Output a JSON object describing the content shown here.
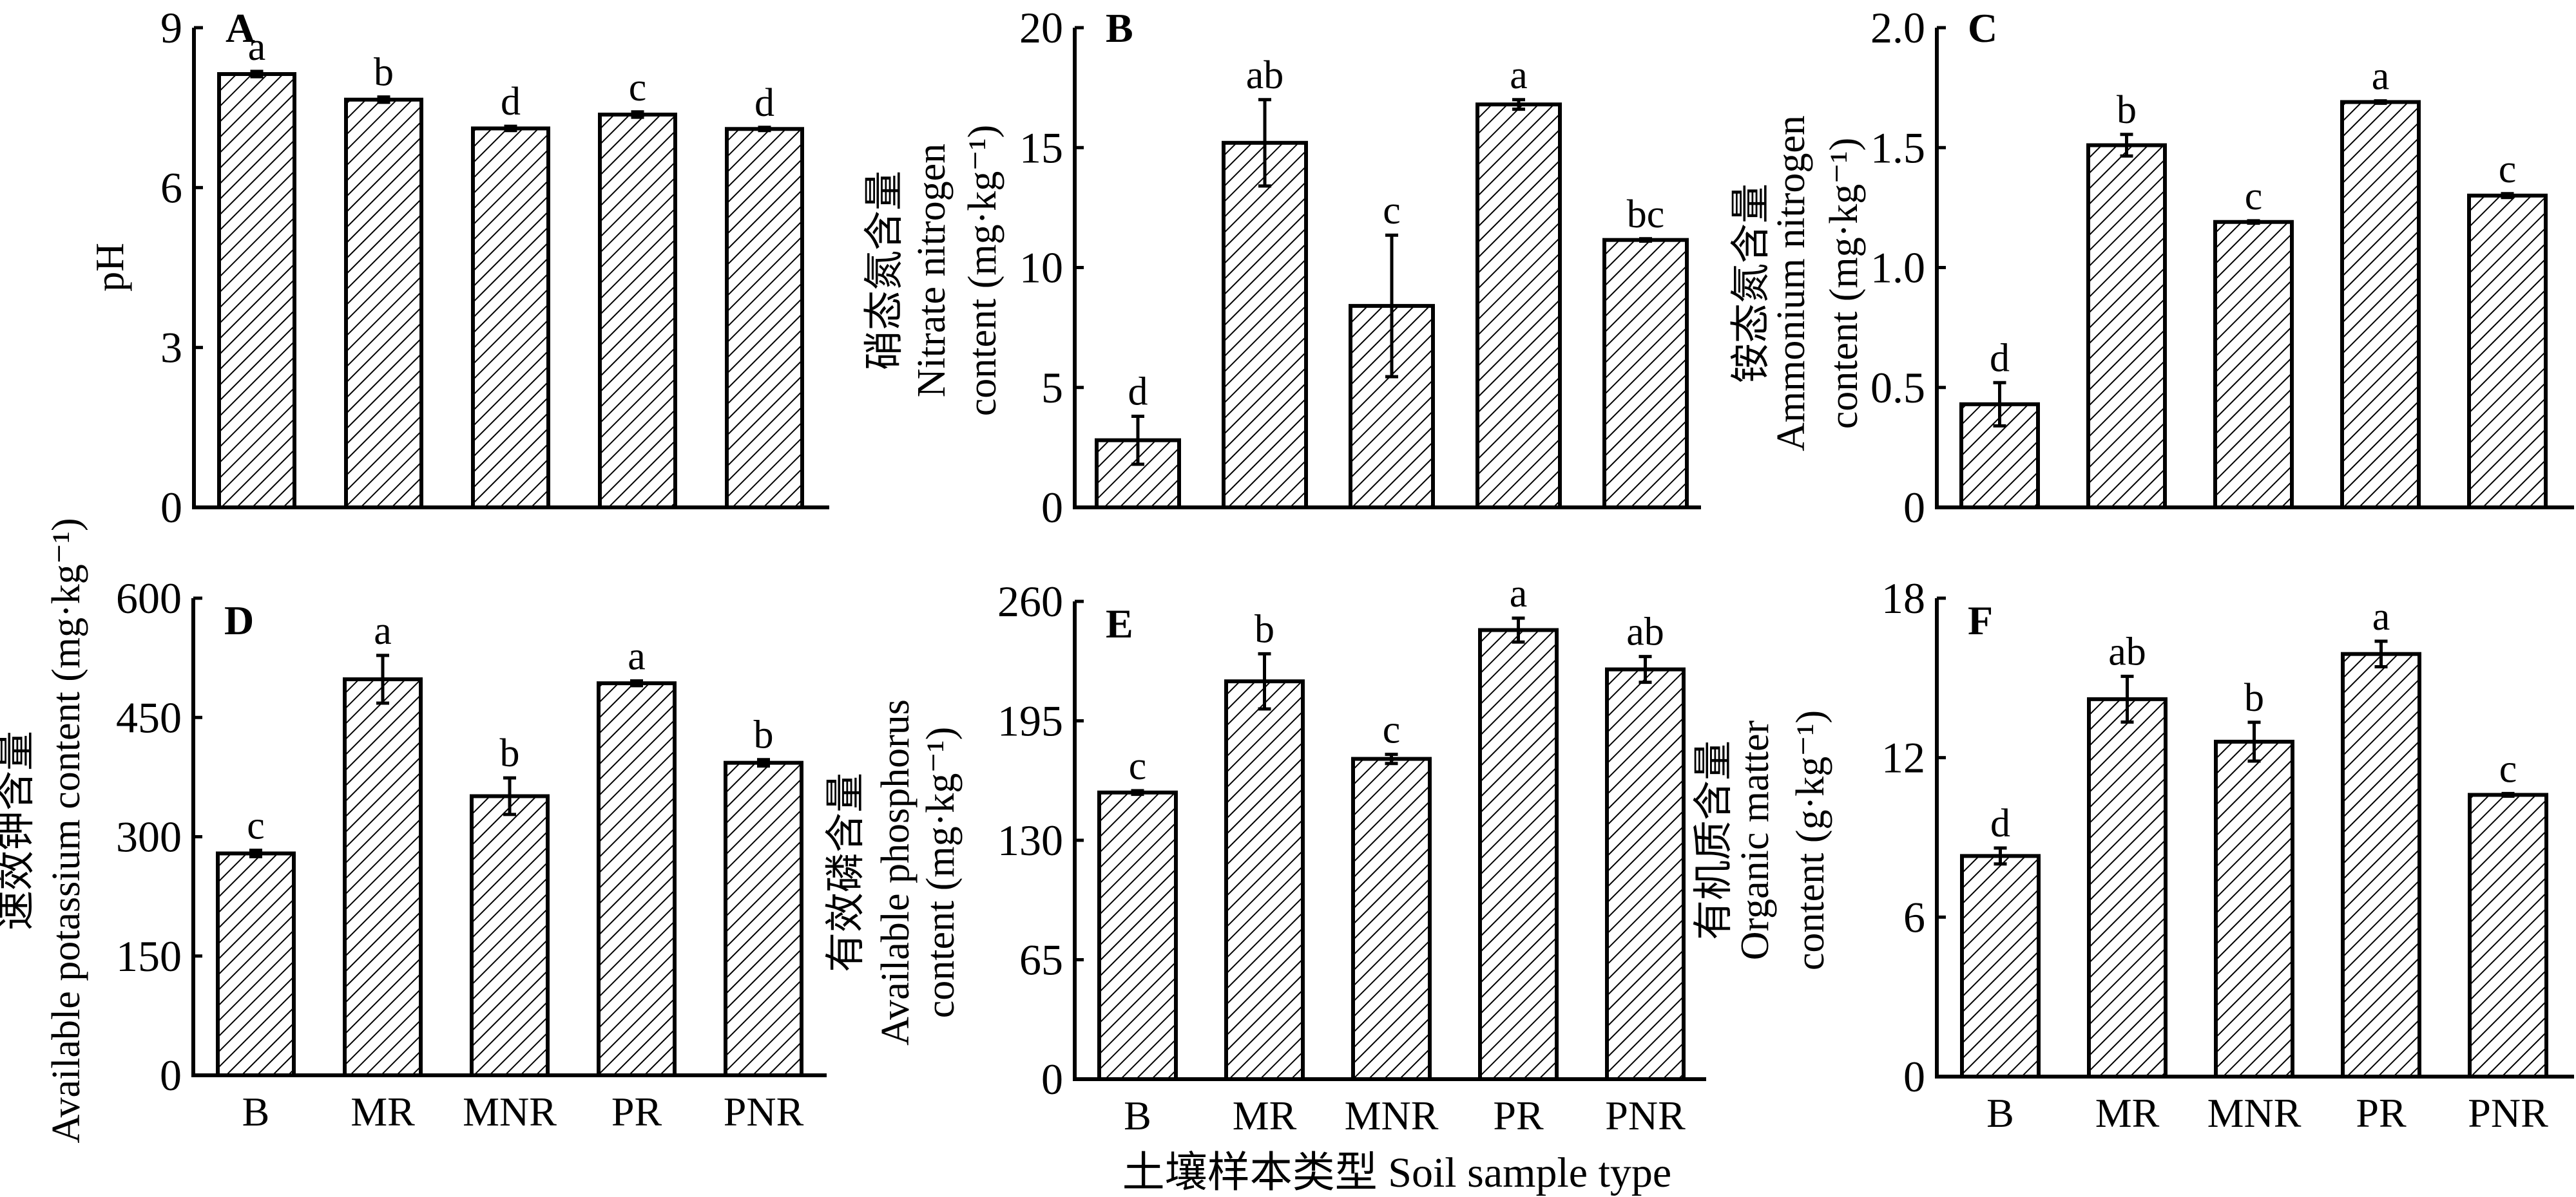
{
  "chart_data": [
    {
      "type": "bar",
      "panel": "A",
      "categories": [
        "B",
        "MR",
        "MNR",
        "PR",
        "PNR"
      ],
      "values": [
        8.13,
        7.65,
        7.11,
        7.37,
        7.1
      ],
      "errors": [
        0.05,
        0.05,
        0.04,
        0.05,
        0.03
      ],
      "significance": [
        "a",
        "b",
        "d",
        "c",
        "d"
      ],
      "ylabel_lines": [
        "pH"
      ],
      "ylim": [
        0,
        9
      ],
      "yticks": [
        "0",
        "3",
        "6",
        "9"
      ],
      "show_categories": false
    },
    {
      "type": "bar",
      "panel": "B",
      "categories": [
        "B",
        "MR",
        "MNR",
        "PR",
        "PNR"
      ],
      "values": [
        2.8,
        15.2,
        8.4,
        16.8,
        11.15
      ],
      "errors": [
        1.0,
        1.8,
        2.95,
        0.2,
        0.05
      ],
      "significance": [
        "d",
        "ab",
        "c",
        "a",
        "bc"
      ],
      "ylabel_lines": [
        "硝态氮含量",
        "Nitrate nitrogen",
        "content (mg·kg⁻¹)"
      ],
      "ylim": [
        0,
        20
      ],
      "yticks": [
        "0",
        "5",
        "10",
        "15",
        "20"
      ],
      "show_categories": false
    },
    {
      "type": "bar",
      "panel": "C",
      "categories": [
        "B",
        "MR",
        "MNR",
        "PR",
        "PNR"
      ],
      "values": [
        0.43,
        1.51,
        1.19,
        1.69,
        1.3
      ],
      "errors": [
        0.09,
        0.045,
        0.005,
        0.005,
        0.008
      ],
      "significance": [
        "d",
        "b",
        "c",
        "a",
        "c"
      ],
      "ylabel_lines": [
        "铵态氮含量",
        "Ammonium nitrogen",
        "content (mg·kg⁻¹)"
      ],
      "ylim": [
        0,
        2.0
      ],
      "yticks": [
        "0",
        "0.5",
        "1.0",
        "1.5",
        "2.0"
      ],
      "show_categories": false
    },
    {
      "type": "bar",
      "panel": "D",
      "categories": [
        "B",
        "MR",
        "MNR",
        "PR",
        "PNR"
      ],
      "values": [
        279,
        498,
        351,
        493,
        393
      ],
      "errors": [
        4,
        30,
        23,
        3,
        4
      ],
      "significance": [
        "c",
        "a",
        "b",
        "a",
        "b"
      ],
      "ylabel_lines": [
        "速效钾含量",
        "Available potassium content (mg·kg⁻¹)"
      ],
      "ylim": [
        0,
        600
      ],
      "yticks": [
        "0",
        "150",
        "300",
        "450",
        "600"
      ],
      "show_categories": true
    },
    {
      "type": "bar",
      "panel": "E",
      "categories": [
        "B",
        "MR",
        "MNR",
        "PR",
        "PNR"
      ],
      "values": [
        156,
        216.5,
        174.3,
        244.4,
        223
      ],
      "errors": [
        1,
        15,
        2.5,
        6.5,
        7
      ],
      "significance": [
        "c",
        "b",
        "c",
        "a",
        "ab"
      ],
      "ylabel_lines": [
        "有效磷含量",
        "Available phosphorus",
        "content (mg·kg⁻¹)"
      ],
      "ylim": [
        0,
        260
      ],
      "yticks": [
        "0",
        "65",
        "130",
        "195",
        "260"
      ],
      "show_categories": true
    },
    {
      "type": "bar",
      "panel": "F",
      "categories": [
        "B",
        "MR",
        "MNR",
        "PR",
        "PNR"
      ],
      "values": [
        8.3,
        14.2,
        12.6,
        15.9,
        10.6
      ],
      "errors": [
        0.3,
        0.86,
        0.73,
        0.48,
        0.05
      ],
      "significance": [
        "d",
        "ab",
        "b",
        "a",
        "c"
      ],
      "ylabel_lines": [
        "有机质含量",
        "Organic matter",
        "content (g·kg⁻¹)"
      ],
      "ylim": [
        0,
        18
      ],
      "yticks": [
        "0",
        "6",
        "12",
        "18"
      ],
      "show_categories": true
    }
  ],
  "xlabel": "土壤样本类型 Soil sample type"
}
